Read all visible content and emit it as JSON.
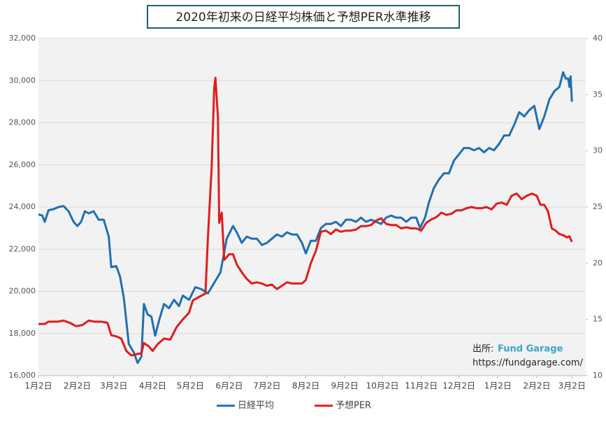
{
  "chart_data": {
    "type": "line",
    "title": "2020年初来の日経平均株価と予想PER水準推移",
    "source_label": "出所:",
    "source_name": "Fund Garage",
    "source_url": "https://fundgarage.com/",
    "xlim": [
      0,
      436
    ],
    "xticks": [
      {
        "value": 0,
        "label": "1月2日"
      },
      {
        "value": 31,
        "label": "2月2日"
      },
      {
        "value": 60,
        "label": "3月2日"
      },
      {
        "value": 91,
        "label": "4月2日"
      },
      {
        "value": 121,
        "label": "5月2日"
      },
      {
        "value": 152,
        "label": "6月2日"
      },
      {
        "value": 182,
        "label": "7月2日"
      },
      {
        "value": 213,
        "label": "8月2日"
      },
      {
        "value": 244,
        "label": "9月2日"
      },
      {
        "value": 274,
        "label": "10月2日"
      },
      {
        "value": 305,
        "label": "11月2日"
      },
      {
        "value": 335,
        "label": "12月2日"
      },
      {
        "value": 366,
        "label": "1月2日"
      },
      {
        "value": 397,
        "label": "2月2日"
      },
      {
        "value": 425,
        "label": "3月2日"
      }
    ],
    "ylim": [
      16000,
      32000
    ],
    "yticks": [
      {
        "value": 16000,
        "label": "16,000"
      },
      {
        "value": 18000,
        "label": "18,000"
      },
      {
        "value": 20000,
        "label": "20,000"
      },
      {
        "value": 22000,
        "label": "22,000"
      },
      {
        "value": 24000,
        "label": "24,000"
      },
      {
        "value": 26000,
        "label": "26,000"
      },
      {
        "value": 28000,
        "label": "28,000"
      },
      {
        "value": 30000,
        "label": "30,000"
      },
      {
        "value": 32000,
        "label": "32,000"
      }
    ],
    "y2lim": [
      10,
      40
    ],
    "y2ticks": [
      10,
      15,
      20,
      25,
      30,
      35,
      40
    ],
    "grid": true,
    "series": [
      {
        "name": "日経平均",
        "color": "#1f6fb5",
        "x": [
          0,
          3,
          5,
          8,
          12,
          16,
          20,
          24,
          28,
          31,
          34,
          37,
          40,
          44,
          48,
          52,
          56,
          58,
          62,
          65,
          68,
          72,
          76,
          79,
          82,
          84,
          87,
          90,
          93,
          96,
          100,
          104,
          108,
          112,
          115,
          120,
          125,
          130,
          135,
          140,
          145,
          150,
          155,
          158,
          162,
          166,
          170,
          174,
          178,
          182,
          186,
          190,
          194,
          198,
          202,
          206,
          210,
          213,
          217,
          221,
          225,
          229,
          233,
          237,
          241,
          245,
          249,
          253,
          257,
          261,
          265,
          269,
          273,
          277,
          281,
          285,
          289,
          293,
          297,
          301,
          304,
          308,
          311,
          315,
          319,
          323,
          327,
          331,
          335,
          339,
          343,
          347,
          351,
          355,
          359,
          363,
          367,
          371,
          375,
          379,
          383,
          387,
          391,
          395,
          399,
          403,
          407,
          411,
          415,
          418,
          420,
          422,
          423,
          424,
          425
        ],
        "values": [
          23650,
          23600,
          23300,
          23850,
          23900,
          24000,
          24050,
          23800,
          23300,
          23100,
          23300,
          23800,
          23700,
          23800,
          23400,
          23400,
          22600,
          21150,
          21200,
          20700,
          19700,
          17500,
          17100,
          16600,
          16900,
          19400,
          18900,
          18800,
          17900,
          18600,
          19400,
          19200,
          19600,
          19300,
          19800,
          19600,
          20200,
          20100,
          19900,
          20400,
          20900,
          22500,
          23100,
          22800,
          22300,
          22600,
          22500,
          22500,
          22200,
          22300,
          22500,
          22700,
          22600,
          22800,
          22700,
          22700,
          22300,
          21800,
          22400,
          22400,
          23000,
          23200,
          23200,
          23300,
          23100,
          23400,
          23400,
          23300,
          23500,
          23300,
          23400,
          23300,
          23200,
          23500,
          23600,
          23500,
          23500,
          23300,
          23500,
          23500,
          23000,
          23500,
          24200,
          24900,
          25300,
          25600,
          25600,
          26200,
          26500,
          26800,
          26800,
          26700,
          26800,
          26600,
          26800,
          26700,
          27000,
          27400,
          27400,
          27900,
          28500,
          28300,
          28600,
          28800,
          27700,
          28300,
          29100,
          29500,
          29700,
          30400,
          30100,
          30100,
          29700,
          30200,
          29000
        ]
      },
      {
        "name": "予想PER",
        "color": "#e31b1b",
        "axis": "y2",
        "x": [
          0,
          5,
          8,
          15,
          20,
          25,
          30,
          35,
          40,
          45,
          50,
          55,
          58,
          62,
          66,
          70,
          74,
          78,
          82,
          84,
          88,
          91,
          95,
          100,
          105,
          110,
          115,
          120,
          123,
          128,
          133,
          135,
          138,
          140,
          141,
          143,
          144,
          146,
          148,
          152,
          155,
          158,
          162,
          166,
          170,
          174,
          178,
          182,
          186,
          190,
          194,
          198,
          202,
          206,
          210,
          213,
          217,
          221,
          225,
          229,
          233,
          237,
          241,
          245,
          249,
          253,
          257,
          261,
          265,
          269,
          273,
          277,
          281,
          285,
          289,
          293,
          297,
          301,
          305,
          309,
          313,
          317,
          321,
          325,
          329,
          333,
          337,
          341,
          345,
          349,
          353,
          357,
          361,
          365,
          369,
          373,
          377,
          381,
          385,
          389,
          393,
          397,
          400,
          403,
          406,
          409,
          412,
          415,
          418,
          421,
          423,
          425
        ],
        "values": [
          14.6,
          14.6,
          14.8,
          14.8,
          14.9,
          14.7,
          14.4,
          14.5,
          14.9,
          14.8,
          14.8,
          14.7,
          13.6,
          13.5,
          13.3,
          12.2,
          11.8,
          11.9,
          12.0,
          12.9,
          12.6,
          12.2,
          12.8,
          13.3,
          13.2,
          14.3,
          15.0,
          15.6,
          16.7,
          17.0,
          17.3,
          22.2,
          28.5,
          35.5,
          36.5,
          33.0,
          23.6,
          24.5,
          20.3,
          20.8,
          20.8,
          19.9,
          19.2,
          18.6,
          18.2,
          18.3,
          18.2,
          18.0,
          18.1,
          17.7,
          18.0,
          18.3,
          18.2,
          18.2,
          18.2,
          18.5,
          20.0,
          21.1,
          22.8,
          22.9,
          22.6,
          23.0,
          22.8,
          22.9,
          22.9,
          23.0,
          23.3,
          23.3,
          23.4,
          23.8,
          24.0,
          23.5,
          23.4,
          23.4,
          23.1,
          23.2,
          23.1,
          23.1,
          22.9,
          23.6,
          23.9,
          24.1,
          24.5,
          24.3,
          24.4,
          24.7,
          24.7,
          24.9,
          25.0,
          24.9,
          24.9,
          25.0,
          24.8,
          25.3,
          25.4,
          25.2,
          26.0,
          26.2,
          25.7,
          26.0,
          26.2,
          26.0,
          25.2,
          25.2,
          24.6,
          23.1,
          22.9,
          22.6,
          22.5,
          22.3,
          22.4,
          21.9
        ]
      }
    ]
  }
}
